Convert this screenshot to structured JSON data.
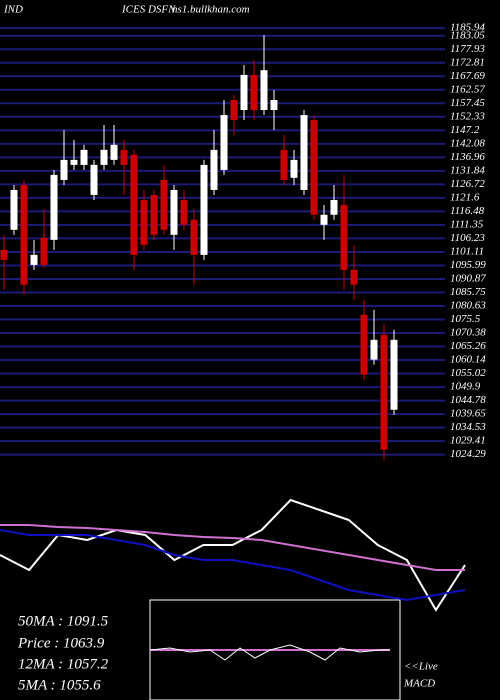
{
  "chart_data": {
    "type": "candlestick",
    "header": [
      "IND",
      "ICES DSFN",
      "ns1.bullkhan.com"
    ],
    "up_color": "#ffffff",
    "down_color": "#cc0000",
    "grid": true,
    "grid_color": "#1c1c78",
    "ylim": [
      1021.5,
      1187.5
    ],
    "yticks": [
      1185.94,
      1183.05,
      1177.93,
      1172.81,
      1167.69,
      1162.57,
      1157.45,
      1152.33,
      1147.2,
      1142.08,
      1136.96,
      1131.84,
      1126.72,
      1121.6,
      1116.48,
      1111.35,
      1106.23,
      1101.11,
      1095.99,
      1090.87,
      1085.75,
      1080.63,
      1075.5,
      1070.38,
      1065.26,
      1060.14,
      1055.02,
      1049.9,
      1044.78,
      1039.65,
      1034.53,
      1029.41,
      1024.29
    ],
    "open": [
      1101.9,
      1109.5,
      1126.5,
      1096.2,
      1106.4,
      1105.7,
      1128.4,
      1134.1,
      1134.1,
      1122.7,
      1134.1,
      1136.0,
      1139.8,
      1137.9,
      1120.8,
      1122.7,
      1128.4,
      1107.6,
      1120.8,
      1113.3,
      1100.0,
      1124.6,
      1132.2,
      1158.7,
      1154.9,
      1168.2,
      1154.9,
      1154.9,
      1139.8,
      1129.2,
      1124.6,
      1151.1,
      1111.4,
      1115.2,
      1118.9,
      1094.3,
      1077.3,
      1060.3,
      1069.7,
      1041.3
    ],
    "high": [
      1107.6,
      1126.5,
      1128.4,
      1105.7,
      1117.1,
      1132.2,
      1147.3,
      1143.6,
      1141.7,
      1136.0,
      1149.2,
      1149.2,
      1143.6,
      1139.8,
      1124.6,
      1124.6,
      1134.1,
      1126.5,
      1124.6,
      1117.1,
      1136.0,
      1147.3,
      1158.7,
      1160.6,
      1171.9,
      1173.8,
      1183.3,
      1162.5,
      1145.4,
      1139.8,
      1154.9,
      1153.0,
      1118.9,
      1126.5,
      1130.3,
      1103.8,
      1083.0,
      1079.2,
      1073.5,
      1071.6
    ],
    "low": [
      1086.8,
      1107.6,
      1084.9,
      1094.3,
      1095.1,
      1101.9,
      1126.5,
      1132.2,
      1132.2,
      1120.8,
      1132.2,
      1134.1,
      1122.7,
      1094.3,
      1101.9,
      1105.7,
      1107.6,
      1101.9,
      1109.5,
      1088.7,
      1098.1,
      1122.7,
      1130.3,
      1145.4,
      1151.1,
      1151.1,
      1153.0,
      1147.3,
      1126.5,
      1126.5,
      1122.7,
      1113.3,
      1105.7,
      1113.3,
      1086.8,
      1083.0,
      1052.7,
      1058.4,
      1022.4,
      1039.4
    ],
    "close": [
      1098.1,
      1124.6,
      1088.7,
      1100.0,
      1096.2,
      1130.3,
      1136.0,
      1136.0,
      1139.8,
      1134.1,
      1139.8,
      1141.7,
      1134.1,
      1100.0,
      1103.8,
      1107.6,
      1109.5,
      1124.6,
      1111.4,
      1100.0,
      1134.1,
      1139.8,
      1153.0,
      1151.1,
      1168.2,
      1154.9,
      1170.0,
      1158.7,
      1128.4,
      1136.0,
      1153.0,
      1115.2,
      1115.2,
      1120.8,
      1094.3,
      1088.7,
      1054.6,
      1067.8,
      1026.2,
      1067.8
    ],
    "indicator_panel": {
      "ylim": [
        0,
        145
      ],
      "series": [
        {
          "color": "#ffffff",
          "values": [
            70,
            55,
            90,
            85,
            95,
            90,
            65,
            80,
            80,
            95,
            125,
            115,
            105,
            80,
            65,
            15,
            60
          ]
        },
        {
          "color": "#1010c0",
          "values": [
            95,
            90,
            90,
            90,
            85,
            80,
            70,
            65,
            65,
            60,
            55,
            45,
            35,
            30,
            25,
            30,
            35
          ]
        },
        {
          "color": "#d070d0",
          "values": [
            100,
            100,
            98,
            97,
            95,
            93,
            90,
            88,
            87,
            85,
            80,
            75,
            70,
            65,
            60,
            55,
            55
          ]
        }
      ]
    },
    "info": [
      "50MA : 1091.5",
      "Price  : 1063.9",
      "12MA : 1057.2",
      "5MA : 1055.6"
    ],
    "macd_label": [
      "<<Live",
      "MACD"
    ]
  }
}
